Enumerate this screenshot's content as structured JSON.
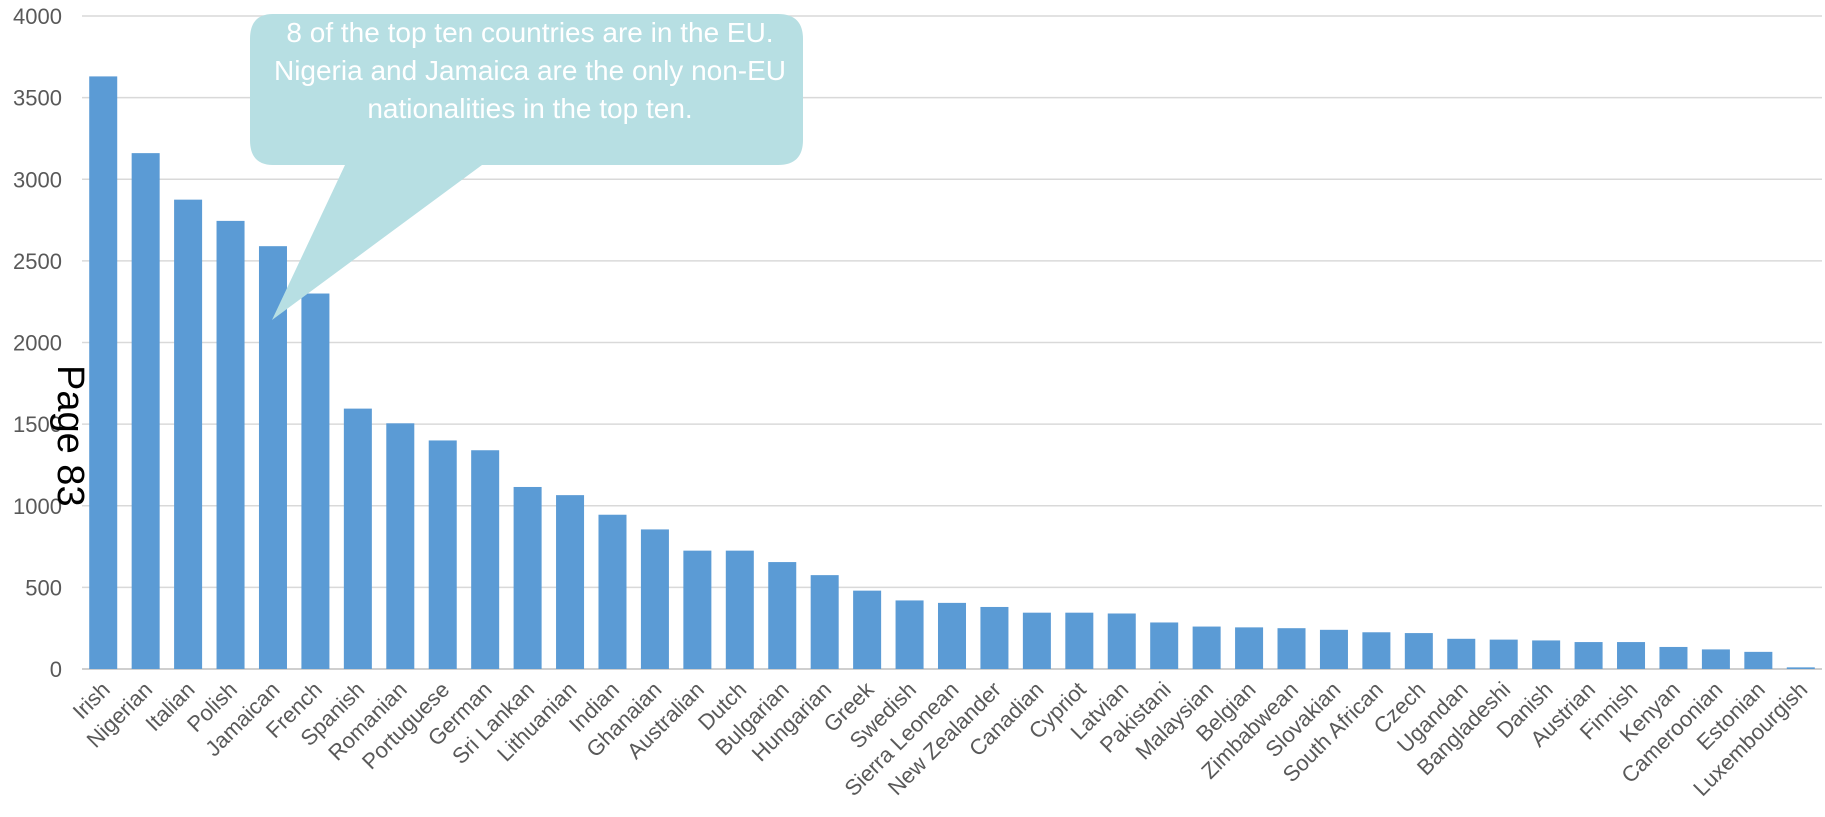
{
  "chart_data": {
    "type": "bar",
    "title": "",
    "xlabel": "",
    "ylabel": "",
    "ylim": [
      0,
      4000
    ],
    "yticks": [
      0,
      500,
      1000,
      1500,
      2000,
      2500,
      3000,
      3500,
      4000
    ],
    "grid": true,
    "bar_color": "#5B9BD5",
    "categories": [
      "Irish",
      "Nigerian",
      "Italian",
      "Polish",
      "Jamaican",
      "French",
      "Spanish",
      "Romanian",
      "Portuguese",
      "German",
      "Sri Lankan",
      "Lithuanian",
      "Indian",
      "Ghanaian",
      "Australian",
      "Dutch",
      "Bulgarian",
      "Hungarian",
      "Greek",
      "Swedish",
      "Sierra Leonean",
      "New Zealander",
      "Canadian",
      "Cypriot",
      "Latvian",
      "Pakistani",
      "Malaysian",
      "Belgian",
      "Zimbabwean",
      "Slovakian",
      "South African",
      "Czech",
      "Ugandan",
      "Bangladeshi",
      "Danish",
      "Austrian",
      "Finnish",
      "Kenyan",
      "Cameroonian",
      "Estonian",
      "Luxembourgish"
    ],
    "values": [
      3630,
      3160,
      2875,
      2745,
      2590,
      2300,
      1595,
      1505,
      1400,
      1340,
      1115,
      1065,
      945,
      855,
      725,
      725,
      655,
      575,
      480,
      420,
      405,
      380,
      345,
      345,
      340,
      285,
      260,
      255,
      250,
      240,
      225,
      220,
      185,
      180,
      175,
      165,
      165,
      135,
      120,
      105,
      10
    ],
    "annotation": {
      "text": "8 of the top ten countries are in the EU. Nigeria and Jamaica are the only non-EU nationalities in the top ten.",
      "color": "#B7DFE3"
    }
  },
  "page_mark": "Page 83"
}
